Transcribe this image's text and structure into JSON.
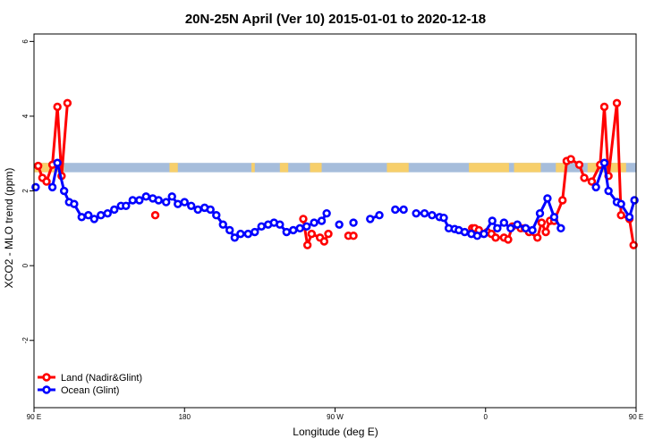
{
  "chart_data": {
    "type": "line",
    "title": "20N-25N April (Ver 10)   2015-01-01 to 2020-12-18",
    "xlabel": "Longitude (deg E)",
    "ylabel": "XCO2 - MLO trend (ppm)",
    "xlim": [
      90,
      450
    ],
    "ylim": [
      -3.8,
      6.2
    ],
    "xticks": [
      {
        "value": 90,
        "label": "90 E"
      },
      {
        "value": 180,
        "label": "180"
      },
      {
        "value": 270,
        "label": "90 W"
      },
      {
        "value": 360,
        "label": "0"
      },
      {
        "value": 450,
        "label": "90 E"
      },
      {
        "value": 540,
        "label": "180"
      }
    ],
    "yticks": [
      {
        "value": -2,
        "label": "-2"
      },
      {
        "value": 0,
        "label": "0"
      },
      {
        "value": 2,
        "label": "2"
      },
      {
        "value": 4,
        "label": "4"
      },
      {
        "value": 6,
        "label": "6"
      }
    ],
    "grid": false,
    "legend_position": "bottom-left",
    "colors": {
      "land": "#ff0000",
      "ocean": "#0000ff",
      "band_sea": "#a6bddb",
      "band_land": "#f7cf6b"
    },
    "band": {
      "y_range": [
        2.5,
        2.75
      ]
    },
    "series": [
      {
        "name": "Land (Nadir&Glint)",
        "color": "#ff0000",
        "x": [
          92.5,
          95,
          97.5,
          101,
          104,
          106.5,
          110,
          162.5,
          251,
          253.5,
          256,
          261,
          263.5,
          266,
          278,
          281,
          352,
          353.5,
          356,
          361,
          363.5,
          366,
          371,
          373.5,
          376,
          381,
          383.5,
          386,
          391,
          393.5,
          396,
          398.5,
          401,
          406,
          408.5,
          411,
          416,
          419,
          423.5,
          428.5,
          431,
          433.5,
          438.5,
          441,
          446,
          448.5
        ],
        "y": [
          2.67,
          2.35,
          2.25,
          2.7,
          4.25,
          2.4,
          4.35,
          1.35,
          1.25,
          0.55,
          0.85,
          0.75,
          0.65,
          0.85,
          0.8,
          0.8,
          1.0,
          1.0,
          0.95,
          0.9,
          0.85,
          0.75,
          0.75,
          0.7,
          1.05,
          1.0,
          1.0,
          0.9,
          0.75,
          1.15,
          0.9,
          1.2,
          1.2,
          1.75,
          2.8,
          2.85,
          2.7,
          2.35,
          2.25,
          2.7,
          4.25,
          2.4,
          4.35,
          1.35,
          1.25,
          0.55
        ]
      },
      {
        "name": "Ocean (Glint)",
        "color": "#0000ff",
        "x": [
          91,
          101,
          104,
          108,
          111,
          114,
          118.5,
          122.5,
          126,
          130,
          134,
          138,
          142,
          145,
          149,
          153,
          157,
          161,
          164.5,
          169,
          172.5,
          176,
          180,
          184,
          188,
          192,
          195.5,
          199,
          203,
          207,
          210,
          213.5,
          218,
          222,
          226,
          230,
          233.5,
          237,
          241,
          245,
          249,
          253,
          257.5,
          262,
          265,
          272.5,
          281,
          291,
          296.5,
          306,
          311,
          318.5,
          323.5,
          328,
          332.5,
          335,
          338,
          341.5,
          344,
          347.5,
          351.5,
          355,
          359,
          364,
          367,
          371,
          375,
          379,
          384,
          388,
          392.5,
          397,
          401,
          405,
          426,
          431,
          433.5,
          438.5,
          441,
          446,
          449
        ],
        "y": [
          2.1,
          2.1,
          2.75,
          2.0,
          1.7,
          1.65,
          1.3,
          1.35,
          1.25,
          1.35,
          1.4,
          1.5,
          1.6,
          1.6,
          1.75,
          1.75,
          1.85,
          1.8,
          1.75,
          1.7,
          1.85,
          1.65,
          1.7,
          1.6,
          1.5,
          1.55,
          1.5,
          1.35,
          1.1,
          0.95,
          0.75,
          0.85,
          0.85,
          0.9,
          1.05,
          1.1,
          1.15,
          1.1,
          0.9,
          0.95,
          1.0,
          1.05,
          1.15,
          1.2,
          1.4,
          1.1,
          1.15,
          1.25,
          1.35,
          1.5,
          1.5,
          1.4,
          1.4,
          1.35,
          1.3,
          1.28,
          1.0,
          0.98,
          0.95,
          0.9,
          0.85,
          0.8,
          0.85,
          1.2,
          1.0,
          1.15,
          1.0,
          1.1,
          1.0,
          0.95,
          1.4,
          1.8,
          1.3,
          1.0,
          2.1,
          2.75,
          2.0,
          1.7,
          1.65,
          1.3,
          1.75
        ]
      }
    ]
  }
}
